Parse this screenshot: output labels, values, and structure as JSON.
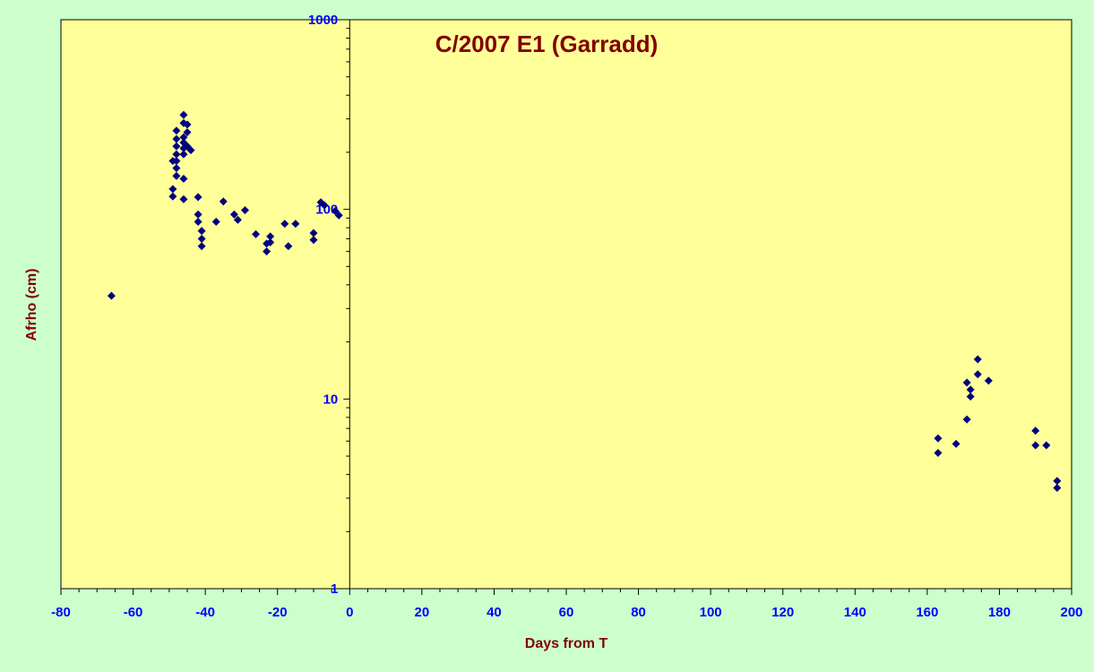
{
  "chart_data": {
    "type": "scatter",
    "title": "C/2007 E1 (Garradd)",
    "xlabel": "Days from T",
    "ylabel": "Afrho (cm)",
    "xlim": [
      -80,
      200
    ],
    "ylim": [
      1,
      1000
    ],
    "yscale": "log",
    "x_ticks": [
      -80,
      -60,
      -40,
      -20,
      0,
      20,
      40,
      60,
      80,
      100,
      120,
      140,
      160,
      180,
      200
    ],
    "y_ticks": [
      1,
      10,
      100,
      1000
    ],
    "grid": false,
    "legend": "none",
    "colors": {
      "plot_bg": "#ffff99",
      "page_bg": "#ccffcc",
      "marker": "#000080",
      "tick_text": "#0000ff",
      "title_text": "#800000"
    },
    "points": [
      {
        "x": -66,
        "y": 35
      },
      {
        "x": -49,
        "y": 180
      },
      {
        "x": -49,
        "y": 128
      },
      {
        "x": -49,
        "y": 117
      },
      {
        "x": -48,
        "y": 260
      },
      {
        "x": -48,
        "y": 235
      },
      {
        "x": -48,
        "y": 215
      },
      {
        "x": -48,
        "y": 195
      },
      {
        "x": -48,
        "y": 180
      },
      {
        "x": -48,
        "y": 165
      },
      {
        "x": -48,
        "y": 150
      },
      {
        "x": -46,
        "y": 315
      },
      {
        "x": -46,
        "y": 285
      },
      {
        "x": -46,
        "y": 240
      },
      {
        "x": -46,
        "y": 225
      },
      {
        "x": -46,
        "y": 210
      },
      {
        "x": -46,
        "y": 195
      },
      {
        "x": -46,
        "y": 145
      },
      {
        "x": -46,
        "y": 113
      },
      {
        "x": -45,
        "y": 280
      },
      {
        "x": -45,
        "y": 255
      },
      {
        "x": -45,
        "y": 215
      },
      {
        "x": -44,
        "y": 205
      },
      {
        "x": -42,
        "y": 116
      },
      {
        "x": -42,
        "y": 94
      },
      {
        "x": -42,
        "y": 86
      },
      {
        "x": -41,
        "y": 77
      },
      {
        "x": -41,
        "y": 70
      },
      {
        "x": -41,
        "y": 64
      },
      {
        "x": -37,
        "y": 86
      },
      {
        "x": -35,
        "y": 110
      },
      {
        "x": -32,
        "y": 94
      },
      {
        "x": -31,
        "y": 88
      },
      {
        "x": -29,
        "y": 99
      },
      {
        "x": -26,
        "y": 74
      },
      {
        "x": -23,
        "y": 60
      },
      {
        "x": -23,
        "y": 66
      },
      {
        "x": -22,
        "y": 72
      },
      {
        "x": -22,
        "y": 67
      },
      {
        "x": -18,
        "y": 84
      },
      {
        "x": -17,
        "y": 64
      },
      {
        "x": -15,
        "y": 84
      },
      {
        "x": -10,
        "y": 75
      },
      {
        "x": -10,
        "y": 69
      },
      {
        "x": -8,
        "y": 109
      },
      {
        "x": -7,
        "y": 105
      },
      {
        "x": -4,
        "y": 98
      },
      {
        "x": -3,
        "y": 93
      },
      {
        "x": 163,
        "y": 6.2
      },
      {
        "x": 163,
        "y": 5.2
      },
      {
        "x": 168,
        "y": 5.8
      },
      {
        "x": 171,
        "y": 12.2
      },
      {
        "x": 171,
        "y": 7.8
      },
      {
        "x": 172,
        "y": 11.2
      },
      {
        "x": 172,
        "y": 10.3
      },
      {
        "x": 174,
        "y": 16.2
      },
      {
        "x": 174,
        "y": 13.5
      },
      {
        "x": 177,
        "y": 12.5
      },
      {
        "x": 190,
        "y": 6.8
      },
      {
        "x": 190,
        "y": 5.7
      },
      {
        "x": 193,
        "y": 5.7
      },
      {
        "x": 196,
        "y": 3.7
      },
      {
        "x": 196,
        "y": 3.4
      }
    ]
  }
}
